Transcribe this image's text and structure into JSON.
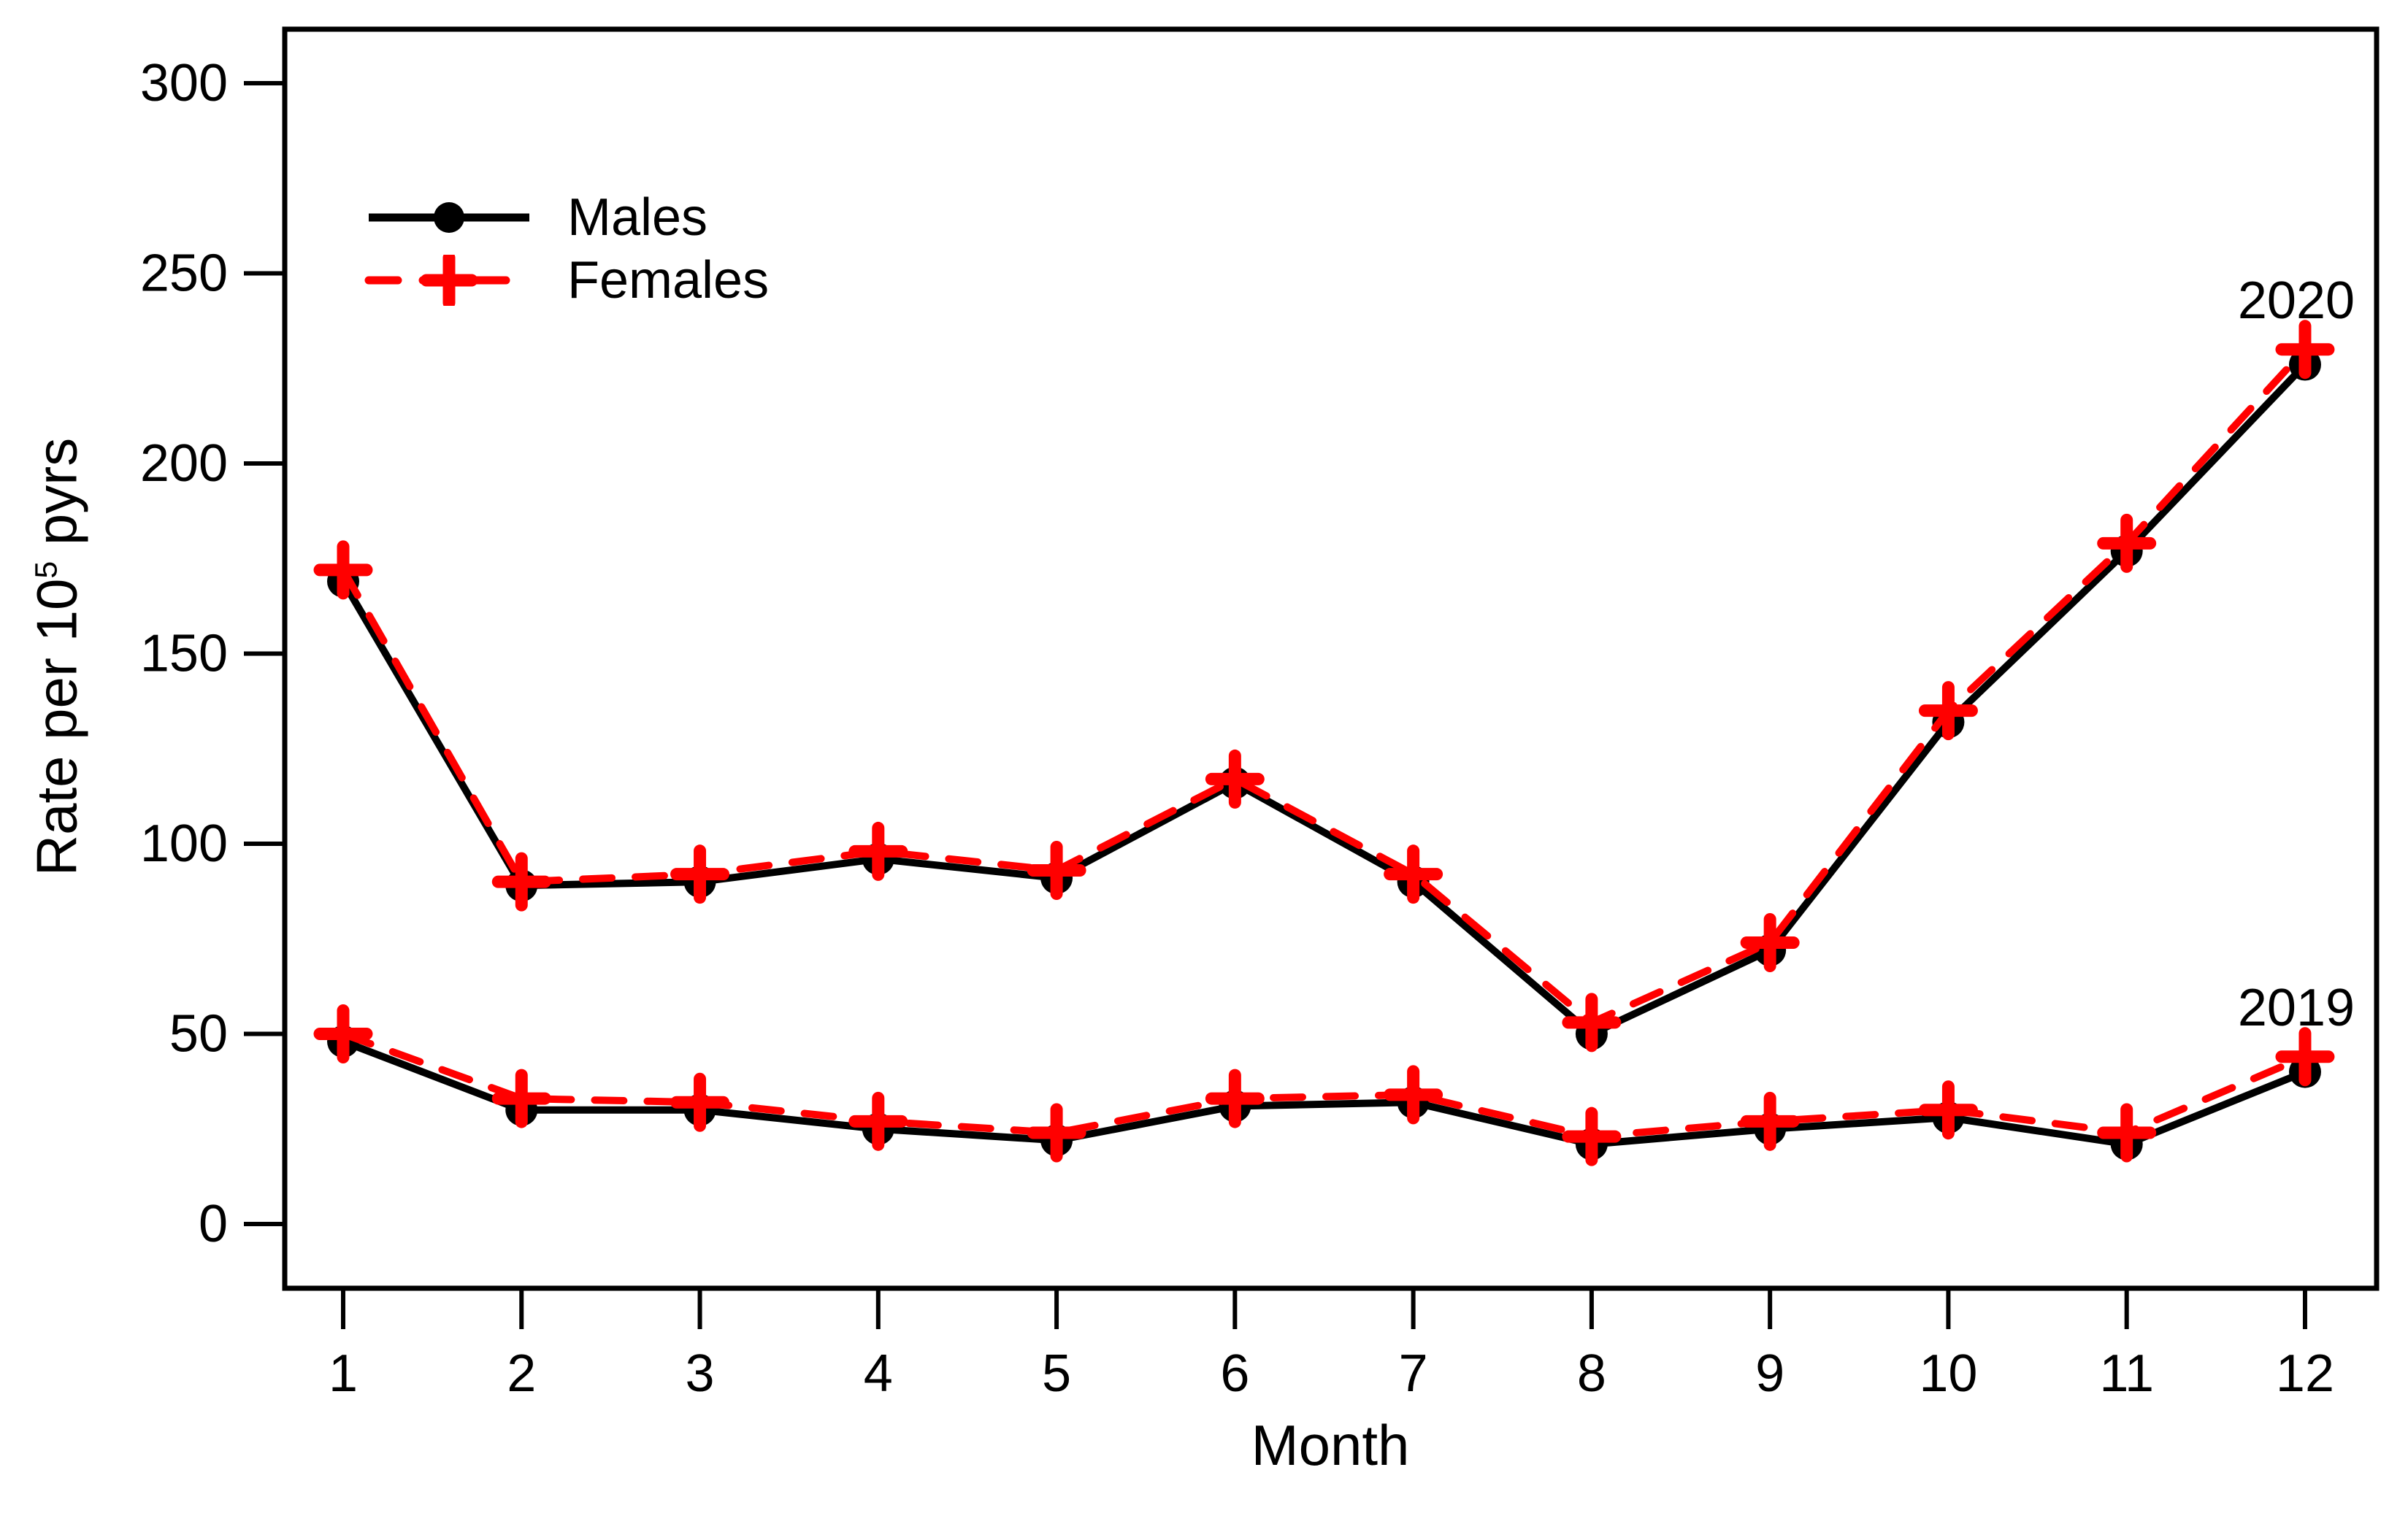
{
  "chart_data": {
    "type": "line",
    "title": "",
    "xlabel": "Month",
    "ylabel": {
      "prefix": "Rate per 10",
      "exponent": "5",
      "suffix": " pyrs"
    },
    "x": [
      1,
      2,
      3,
      4,
      5,
      6,
      7,
      8,
      9,
      10,
      11,
      12
    ],
    "xlim": [
      1,
      12
    ],
    "ylim": [
      0,
      300
    ],
    "yticks": [
      0,
      50,
      100,
      150,
      200,
      250,
      300
    ],
    "grid": "off",
    "colors": {
      "males": "#000000",
      "females": "#ff0000"
    },
    "legend": {
      "position": "upper-left",
      "entries": [
        {
          "label": "Males",
          "color": "#000000",
          "line": "solid",
          "marker": "circle"
        },
        {
          "label": "Females",
          "color": "#ff0000",
          "line": "dashed",
          "marker": "plus"
        }
      ]
    },
    "annotations": [
      {
        "text": "2020",
        "month": 12,
        "series": "Females 2020"
      },
      {
        "text": "2019",
        "month": 12,
        "series": "Females 2019"
      }
    ],
    "series": [
      {
        "name": "Males",
        "year": "2020",
        "color": "#000000",
        "line": "solid",
        "marker": "circle",
        "values": [
          169,
          89,
          90,
          96,
          91,
          116,
          90,
          50,
          72,
          132,
          177,
          226
        ]
      },
      {
        "name": "Females",
        "year": "2020",
        "color": "#ff0000",
        "line": "dashed",
        "marker": "plus",
        "values": [
          172,
          90,
          92,
          98,
          93,
          117,
          92,
          53,
          74,
          135,
          179,
          230
        ]
      },
      {
        "name": "Males",
        "year": "2019",
        "color": "#000000",
        "line": "solid",
        "marker": "circle",
        "values": [
          48,
          30,
          30,
          25,
          22,
          31,
          32,
          21,
          25,
          28,
          21,
          40
        ]
      },
      {
        "name": "Females",
        "year": "2019",
        "color": "#ff0000",
        "line": "dashed",
        "marker": "plus",
        "values": [
          50,
          33,
          32,
          27,
          24,
          33,
          34,
          23,
          27,
          30,
          24,
          44
        ]
      }
    ]
  }
}
